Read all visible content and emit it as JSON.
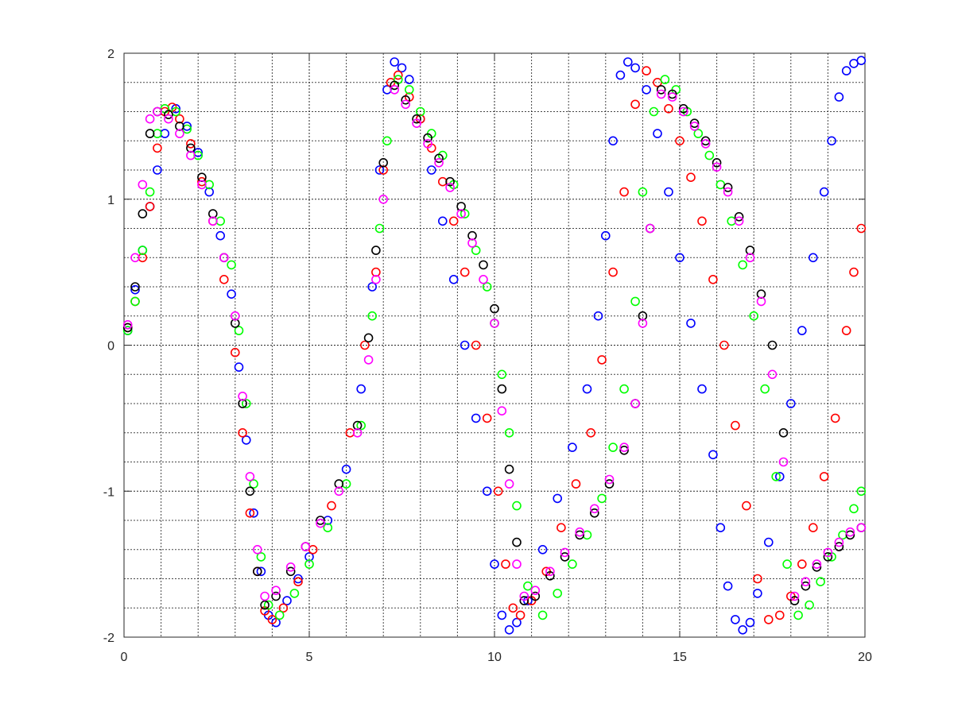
{
  "chart_data": {
    "type": "scatter",
    "title": "",
    "xlabel": "",
    "ylabel": "",
    "xlim": [
      0,
      20
    ],
    "ylim": [
      -2,
      2
    ],
    "xticks": [
      "0",
      "5",
      "10",
      "15",
      "20"
    ],
    "yticks": [
      "-2",
      "-1",
      "0",
      "1",
      "2"
    ],
    "grid": true,
    "minor_grid": true,
    "legend": "none",
    "marker": "circle",
    "series": [
      {
        "color": "#0000ff",
        "x": [
          0.1,
          0.3,
          0.5,
          0.7,
          0.9,
          1.1,
          1.4,
          1.7,
          2.0,
          2.3,
          2.6,
          2.9,
          3.1,
          3.3,
          3.5,
          3.7,
          3.9,
          4.1,
          4.4,
          4.7,
          5.0,
          5.5,
          6.0,
          6.4,
          6.7,
          6.9,
          7.1,
          7.3,
          7.5,
          7.7,
          8.0,
          8.3,
          8.6,
          8.9,
          9.2,
          9.5,
          9.8,
          10.0,
          10.2,
          10.4,
          10.6,
          10.9,
          11.3,
          11.7,
          12.1,
          12.5,
          12.8,
          13.0,
          13.2,
          13.4,
          13.6,
          13.8,
          14.1,
          14.4,
          14.7,
          15.0,
          15.3,
          15.6,
          15.9,
          16.1,
          16.3,
          16.5,
          16.7,
          16.9,
          17.1,
          17.4,
          17.7,
          18.0,
          18.3,
          18.6,
          18.9,
          19.1,
          19.3,
          19.5,
          19.7,
          19.9
        ],
        "y": [
          0.1,
          0.38,
          0.65,
          0.95,
          1.2,
          1.45,
          1.62,
          1.5,
          1.32,
          1.05,
          0.75,
          0.35,
          -0.15,
          -0.65,
          -1.15,
          -1.55,
          -1.85,
          -1.9,
          -1.75,
          -1.6,
          -1.45,
          -1.2,
          -0.85,
          -0.3,
          0.4,
          1.2,
          1.75,
          1.94,
          1.9,
          1.82,
          1.55,
          1.2,
          0.85,
          0.45,
          0.0,
          -0.5,
          -1.0,
          -1.5,
          -1.85,
          -1.95,
          -1.9,
          -1.75,
          -1.4,
          -1.05,
          -0.7,
          -0.3,
          0.2,
          0.75,
          1.4,
          1.85,
          1.94,
          1.9,
          1.75,
          1.45,
          1.05,
          0.6,
          0.15,
          -0.3,
          -0.75,
          -1.25,
          -1.65,
          -1.88,
          -1.95,
          -1.9,
          -1.7,
          -1.35,
          -0.9,
          -0.4,
          0.1,
          0.6,
          1.05,
          1.4,
          1.7,
          1.88,
          1.93,
          1.95
        ]
      },
      {
        "color": "#ff0000",
        "x": [
          0.1,
          0.3,
          0.5,
          0.7,
          0.9,
          1.1,
          1.3,
          1.5,
          1.8,
          2.1,
          2.4,
          2.7,
          3.0,
          3.2,
          3.4,
          3.6,
          3.8,
          4.0,
          4.3,
          4.7,
          5.1,
          5.6,
          6.1,
          6.5,
          6.8,
          7.0,
          7.2,
          7.4,
          7.7,
          8.0,
          8.3,
          8.6,
          8.9,
          9.2,
          9.5,
          9.8,
          10.1,
          10.3,
          10.5,
          10.7,
          11.0,
          11.4,
          11.8,
          12.2,
          12.6,
          12.9,
          13.2,
          13.5,
          13.8,
          14.1,
          14.4,
          14.7,
          15.0,
          15.3,
          15.6,
          15.9,
          16.2,
          16.5,
          16.8,
          17.1,
          17.4,
          17.7,
          18.0,
          18.3,
          18.6,
          18.9,
          19.2,
          19.5,
          19.7,
          19.9
        ],
        "y": [
          0.12,
          0.3,
          0.6,
          0.95,
          1.35,
          1.6,
          1.63,
          1.55,
          1.38,
          1.12,
          0.85,
          0.45,
          -0.05,
          -0.6,
          -1.15,
          -1.55,
          -1.82,
          -1.88,
          -1.8,
          -1.62,
          -1.4,
          -1.1,
          -0.6,
          0.0,
          0.5,
          1.2,
          1.8,
          1.85,
          1.7,
          1.55,
          1.35,
          1.12,
          0.85,
          0.5,
          0.0,
          -0.5,
          -1.0,
          -1.5,
          -1.8,
          -1.85,
          -1.75,
          -1.55,
          -1.25,
          -0.95,
          -0.6,
          -0.1,
          0.5,
          1.05,
          1.65,
          1.88,
          1.8,
          1.62,
          1.4,
          1.15,
          0.85,
          0.45,
          0.0,
          -0.55,
          -1.1,
          -1.6,
          -1.88,
          -1.85,
          -1.72,
          -1.5,
          -1.25,
          -0.9,
          -0.5,
          0.1,
          0.5,
          0.8
        ]
      },
      {
        "color": "#00ff00",
        "x": [
          0.1,
          0.3,
          0.5,
          0.7,
          0.9,
          1.1,
          1.4,
          1.7,
          2.0,
          2.3,
          2.6,
          2.9,
          3.1,
          3.3,
          3.5,
          3.7,
          3.9,
          4.2,
          4.6,
          5.0,
          5.5,
          6.0,
          6.4,
          6.7,
          6.9,
          7.1,
          7.4,
          7.7,
          8.0,
          8.3,
          8.6,
          8.9,
          9.2,
          9.5,
          9.8,
          10.0,
          10.2,
          10.4,
          10.6,
          10.9,
          11.3,
          11.7,
          12.1,
          12.5,
          12.9,
          13.2,
          13.5,
          13.8,
          14.0,
          14.3,
          14.6,
          14.9,
          15.2,
          15.5,
          15.8,
          16.1,
          16.4,
          16.7,
          17.0,
          17.3,
          17.6,
          17.9,
          18.2,
          18.5,
          18.8,
          19.1,
          19.4,
          19.7,
          19.9
        ],
        "y": [
          0.1,
          0.3,
          0.65,
          1.05,
          1.45,
          1.62,
          1.6,
          1.48,
          1.3,
          1.1,
          0.85,
          0.55,
          0.1,
          -0.4,
          -0.95,
          -1.45,
          -1.78,
          -1.85,
          -1.7,
          -1.5,
          -1.25,
          -0.95,
          -0.55,
          0.2,
          0.8,
          1.4,
          1.82,
          1.75,
          1.6,
          1.45,
          1.3,
          1.1,
          0.9,
          0.65,
          0.4,
          0.15,
          -0.2,
          -0.6,
          -1.1,
          -1.65,
          -1.85,
          -1.7,
          -1.5,
          -1.3,
          -1.05,
          -0.7,
          -0.3,
          0.3,
          1.05,
          1.6,
          1.82,
          1.75,
          1.6,
          1.45,
          1.3,
          1.1,
          0.85,
          0.55,
          0.2,
          -0.3,
          -0.9,
          -1.5,
          -1.85,
          -1.78,
          -1.62,
          -1.45,
          -1.3,
          -1.12,
          -1.0
        ]
      },
      {
        "color": "#000000",
        "x": [
          0.1,
          0.3,
          0.5,
          0.7,
          0.9,
          1.2,
          1.5,
          1.8,
          2.1,
          2.4,
          2.7,
          3.0,
          3.2,
          3.4,
          3.6,
          3.8,
          4.1,
          4.5,
          4.9,
          5.3,
          5.8,
          6.3,
          6.6,
          6.8,
          7.0,
          7.3,
          7.6,
          7.9,
          8.2,
          8.5,
          8.8,
          9.1,
          9.4,
          9.7,
          10.0,
          10.2,
          10.4,
          10.6,
          10.8,
          11.1,
          11.5,
          11.9,
          12.3,
          12.7,
          13.1,
          13.5,
          13.8,
          14.0,
          14.2,
          14.5,
          14.8,
          15.1,
          15.4,
          15.7,
          16.0,
          16.3,
          16.6,
          16.9,
          17.2,
          17.5,
          17.8,
          18.1,
          18.4,
          18.7,
          19.0,
          19.3,
          19.6,
          19.9
        ],
        "y": [
          0.12,
          0.4,
          0.9,
          1.45,
          1.6,
          1.58,
          1.5,
          1.35,
          1.15,
          0.9,
          0.6,
          0.15,
          -0.4,
          -1.0,
          -1.55,
          -1.78,
          -1.72,
          -1.55,
          -1.38,
          -1.2,
          -0.95,
          -0.55,
          0.05,
          0.65,
          1.25,
          1.78,
          1.68,
          1.55,
          1.42,
          1.28,
          1.12,
          0.95,
          0.75,
          0.55,
          0.25,
          -0.3,
          -0.85,
          -1.35,
          -1.75,
          -1.72,
          -1.58,
          -1.45,
          -1.3,
          -1.15,
          -0.95,
          -0.72,
          -0.4,
          0.2,
          0.8,
          1.75,
          1.72,
          1.62,
          1.52,
          1.4,
          1.25,
          1.08,
          0.88,
          0.65,
          0.35,
          0.0,
          -0.6,
          -1.75,
          -1.65,
          -1.52,
          -1.45,
          -1.38,
          -1.3,
          -1.25
        ]
      },
      {
        "color": "#ff00ff",
        "x": [
          0.1,
          0.3,
          0.5,
          0.7,
          0.9,
          1.2,
          1.5,
          1.8,
          2.1,
          2.4,
          2.7,
          3.0,
          3.2,
          3.4,
          3.6,
          3.8,
          4.1,
          4.5,
          4.9,
          5.3,
          5.8,
          6.3,
          6.6,
          6.8,
          7.0,
          7.3,
          7.6,
          7.9,
          8.2,
          8.5,
          8.8,
          9.1,
          9.4,
          9.7,
          10.0,
          10.2,
          10.4,
          10.6,
          10.8,
          11.1,
          11.5,
          11.9,
          12.3,
          12.7,
          13.1,
          13.5,
          13.8,
          14.0,
          14.2,
          14.5,
          14.8,
          15.1,
          15.4,
          15.7,
          16.0,
          16.3,
          16.6,
          16.9,
          17.2,
          17.5,
          17.8,
          18.1,
          18.4,
          18.7,
          19.0,
          19.3,
          19.6,
          19.9
        ],
        "y": [
          0.14,
          0.6,
          1.1,
          1.55,
          1.6,
          1.55,
          1.45,
          1.3,
          1.1,
          0.85,
          0.6,
          0.2,
          -0.35,
          -0.9,
          -1.4,
          -1.72,
          -1.68,
          -1.52,
          -1.38,
          -1.22,
          -1.0,
          -0.6,
          -0.1,
          0.45,
          1.0,
          1.75,
          1.65,
          1.52,
          1.38,
          1.25,
          1.08,
          0.9,
          0.7,
          0.45,
          0.15,
          -0.45,
          -0.95,
          -1.5,
          -1.72,
          -1.68,
          -1.55,
          -1.42,
          -1.28,
          -1.12,
          -0.92,
          -0.7,
          -0.4,
          0.15,
          0.8,
          1.72,
          1.7,
          1.6,
          1.5,
          1.38,
          1.22,
          1.05,
          0.85,
          0.6,
          0.3,
          -0.2,
          -0.8,
          -1.72,
          -1.62,
          -1.5,
          -1.42,
          -1.35,
          -1.28,
          -1.25
        ]
      }
    ]
  }
}
